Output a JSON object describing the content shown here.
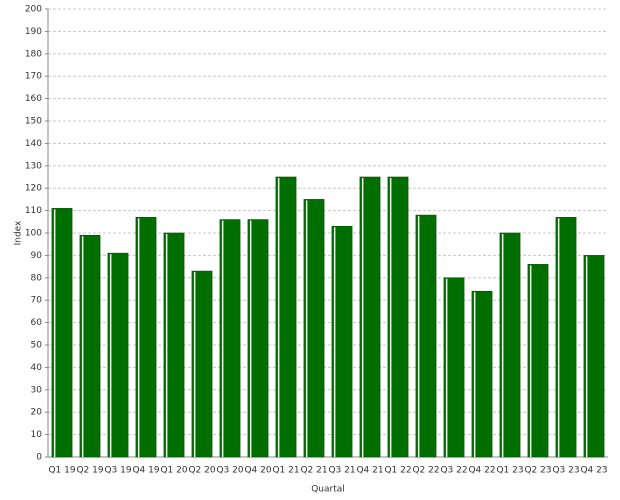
{
  "chart_data": {
    "type": "bar",
    "x_label": "Quartal",
    "y_label": "Index",
    "categories": [
      "Q1 19",
      "Q2 19",
      "Q3 19",
      "Q4 19",
      "Q1 20",
      "Q2 20",
      "Q3 20",
      "Q4 20",
      "Q1 21",
      "Q2 21",
      "Q3 21",
      "Q4 21",
      "Q1 22",
      "Q2 22",
      "Q3 22",
      "Q4 22",
      "Q1 23",
      "Q2 23",
      "Q3 23",
      "Q4 23"
    ],
    "values": [
      111,
      99,
      91,
      107,
      100,
      83,
      106,
      106,
      125,
      115,
      103,
      125,
      125,
      108,
      80,
      74,
      100,
      86,
      107,
      90
    ],
    "color": "#006f00",
    "ylim": [
      0,
      200
    ],
    "yticks": [
      0,
      10,
      20,
      30,
      40,
      50,
      60,
      70,
      80,
      90,
      100,
      110,
      120,
      130,
      140,
      150,
      160,
      170,
      180,
      190,
      200
    ],
    "grid": true
  }
}
